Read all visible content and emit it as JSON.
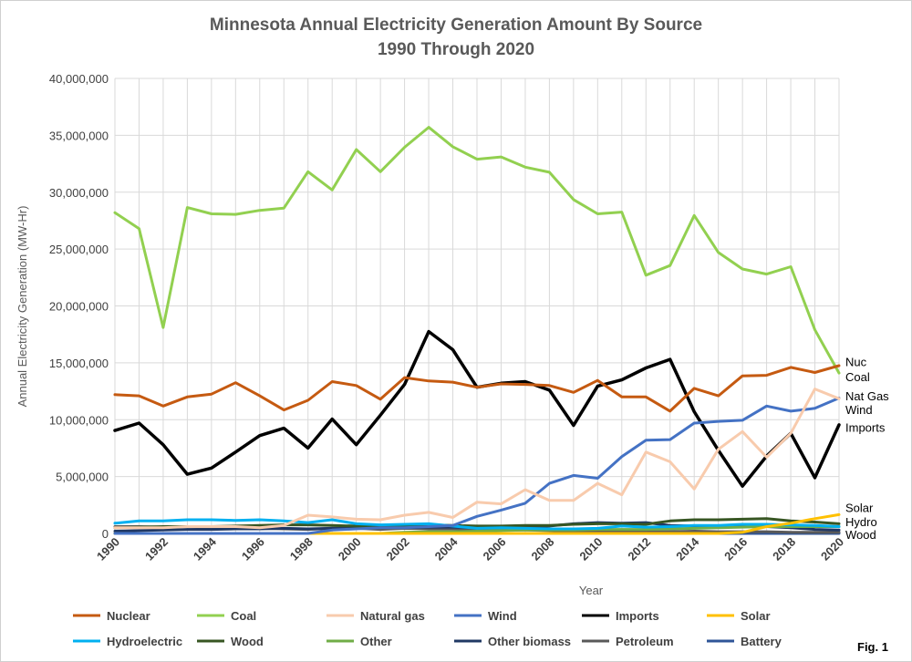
{
  "chart_data": {
    "type": "line",
    "title": "Minnesota Annual Electricity Generation Amount By Source",
    "subtitle": "1990 Through 2020",
    "xlabel": "Year",
    "ylabel": "Annual Electricity Generation (MW-Hr)",
    "ylim": [
      0,
      40000000
    ],
    "y_ticks": [
      "0",
      "5,000,000",
      "10,000,000",
      "15,000,000",
      "20,000,000",
      "25,000,000",
      "30,000,000",
      "35,000,000",
      "40,000,000"
    ],
    "x": [
      1990,
      1991,
      1992,
      1993,
      1994,
      1995,
      1996,
      1997,
      1998,
      1999,
      2000,
      2001,
      2002,
      2003,
      2004,
      2005,
      2006,
      2007,
      2008,
      2009,
      2010,
      2011,
      2012,
      2013,
      2014,
      2015,
      2016,
      2017,
      2018,
      2019,
      2020
    ],
    "x_tick_labels": [
      "1990",
      "1992",
      "1994",
      "1996",
      "1998",
      "2000",
      "2002",
      "2004",
      "2006",
      "2008",
      "2010",
      "2012",
      "2014",
      "2016",
      "2018",
      "2020"
    ],
    "grid": true,
    "legend_position": "bottom",
    "series": [
      {
        "name": "Nuclear",
        "color": "#C55A11",
        "width": 3,
        "values": [
          12200000,
          12100000,
          11200000,
          12000000,
          12250000,
          13250000,
          12100000,
          10850000,
          11700000,
          13350000,
          13000000,
          11800000,
          13700000,
          13400000,
          13300000,
          12850000,
          13150000,
          13100000,
          13000000,
          12400000,
          13450000,
          12000000,
          12000000,
          10750000,
          12750000,
          12100000,
          13850000,
          13900000,
          14600000,
          14150000,
          14750000
        ]
      },
      {
        "name": "Coal",
        "color": "#92D050",
        "width": 3,
        "values": [
          28200000,
          26800000,
          18100000,
          28650000,
          28100000,
          28050000,
          28400000,
          28600000,
          31800000,
          30200000,
          33750000,
          31800000,
          33950000,
          35700000,
          34000000,
          32900000,
          33100000,
          32200000,
          31750000,
          29350000,
          28100000,
          28250000,
          22700000,
          23550000,
          27950000,
          24700000,
          23250000,
          22800000,
          23450000,
          17900000,
          14100000
        ]
      },
      {
        "name": "Natural gas",
        "color": "#F8CBAD",
        "width": 3,
        "values": [
          500000,
          500000,
          500000,
          600000,
          600000,
          600000,
          500000,
          700000,
          1600000,
          1450000,
          1250000,
          1200000,
          1600000,
          1850000,
          1400000,
          2750000,
          2600000,
          3850000,
          2900000,
          2900000,
          4400000,
          3400000,
          7150000,
          6300000,
          3900000,
          7400000,
          8950000,
          6700000,
          8800000,
          12700000,
          11850000
        ]
      },
      {
        "name": "Wind",
        "color": "#4472C4",
        "width": 3,
        "values": [
          0,
          0,
          0,
          0,
          0,
          0,
          0,
          0,
          0,
          300000,
          400000,
          500000,
          500000,
          600000,
          700000,
          1500000,
          2050000,
          2650000,
          4400000,
          5100000,
          4850000,
          6750000,
          8200000,
          8250000,
          9700000,
          9850000,
          9950000,
          11200000,
          10750000,
          11000000,
          11900000
        ]
      },
      {
        "name": "Imports",
        "color": "#000000",
        "width": 3.5,
        "values": [
          9050000,
          9700000,
          7800000,
          5200000,
          5750000,
          7150000,
          8600000,
          9250000,
          7500000,
          10050000,
          7800000,
          10400000,
          13100000,
          17750000,
          16150000,
          12850000,
          13200000,
          13350000,
          12600000,
          9500000,
          12950000,
          13500000,
          14550000,
          15300000,
          10700000,
          7300000,
          4150000,
          6800000,
          8800000,
          4900000,
          9550000
        ]
      },
      {
        "name": "Solar",
        "color": "#FFC000",
        "width": 3,
        "values": [
          0,
          0,
          0,
          0,
          0,
          0,
          0,
          0,
          0,
          0,
          0,
          0,
          0,
          0,
          0,
          0,
          0,
          0,
          0,
          0,
          0,
          0,
          0,
          0,
          0,
          0,
          100000,
          600000,
          900000,
          1300000,
          1650000
        ]
      },
      {
        "name": "Hydroelectric",
        "color": "#00B0F0",
        "width": 3,
        "values": [
          900000,
          1100000,
          1100000,
          1200000,
          1200000,
          1150000,
          1200000,
          1100000,
          950000,
          1200000,
          850000,
          750000,
          800000,
          850000,
          650000,
          450000,
          500000,
          450000,
          400000,
          400000,
          450000,
          650000,
          550000,
          600000,
          700000,
          700000,
          800000,
          800000,
          750000,
          700000,
          600000
        ]
      },
      {
        "name": "Wood",
        "color": "#375623",
        "width": 3,
        "values": [
          500000,
          550000,
          600000,
          600000,
          600000,
          650000,
          700000,
          750000,
          750000,
          700000,
          650000,
          600000,
          700000,
          750000,
          700000,
          650000,
          650000,
          700000,
          700000,
          800000,
          850000,
          850000,
          800000,
          1100000,
          1200000,
          1200000,
          1250000,
          1300000,
          1100000,
          1000000,
          850000
        ]
      },
      {
        "name": "Other",
        "color": "#70AD47",
        "width": 3,
        "values": [
          0,
          0,
          0,
          0,
          0,
          0,
          0,
          0,
          0,
          0,
          0,
          0,
          100000,
          150000,
          150000,
          200000,
          250000,
          300000,
          300000,
          300000,
          350000,
          350000,
          350000,
          400000,
          450000,
          500000,
          550000,
          600000,
          600000,
          600000,
          600000
        ]
      },
      {
        "name": "Other biomass",
        "color": "#203864",
        "width": 3,
        "values": [
          200000,
          250000,
          300000,
          350000,
          350000,
          400000,
          400000,
          450000,
          400000,
          450000,
          500000,
          550000,
          500000,
          550000,
          550000,
          500000,
          550000,
          550000,
          650000,
          850000,
          950000,
          900000,
          950000,
          700000,
          650000,
          600000,
          600000,
          600000,
          500000,
          350000,
          300000
        ]
      },
      {
        "name": "Petroleum",
        "color": "#595959",
        "width": 3,
        "values": [
          600000,
          600000,
          550000,
          600000,
          500000,
          500000,
          450000,
          400000,
          350000,
          450000,
          450000,
          350000,
          450000,
          400000,
          400000,
          350000,
          300000,
          300000,
          250000,
          200000,
          200000,
          200000,
          150000,
          150000,
          200000,
          150000,
          150000,
          150000,
          100000,
          100000,
          100000
        ]
      },
      {
        "name": "Battery",
        "color": "#2F5597",
        "width": 3,
        "values": [
          0,
          0,
          0,
          0,
          0,
          0,
          0,
          0,
          0,
          0,
          0,
          0,
          0,
          0,
          0,
          0,
          0,
          0,
          0,
          0,
          0,
          0,
          0,
          0,
          0,
          0,
          0,
          0,
          0,
          0,
          0
        ]
      }
    ],
    "end_labels": [
      {
        "text": "Nuc",
        "value": 15100000
      },
      {
        "text": "Coal",
        "value": 13800000
      },
      {
        "text": "Nat Gas",
        "value": 12100000
      },
      {
        "text": "Wind",
        "value": 10900000
      },
      {
        "text": "Imports",
        "value": 9350000
      },
      {
        "text": "Solar",
        "value": 2300000
      },
      {
        "text": "Hydro",
        "value": 1050000
      },
      {
        "text": "Wood",
        "value": -100000
      }
    ]
  },
  "figure_label": "Fig. 1"
}
